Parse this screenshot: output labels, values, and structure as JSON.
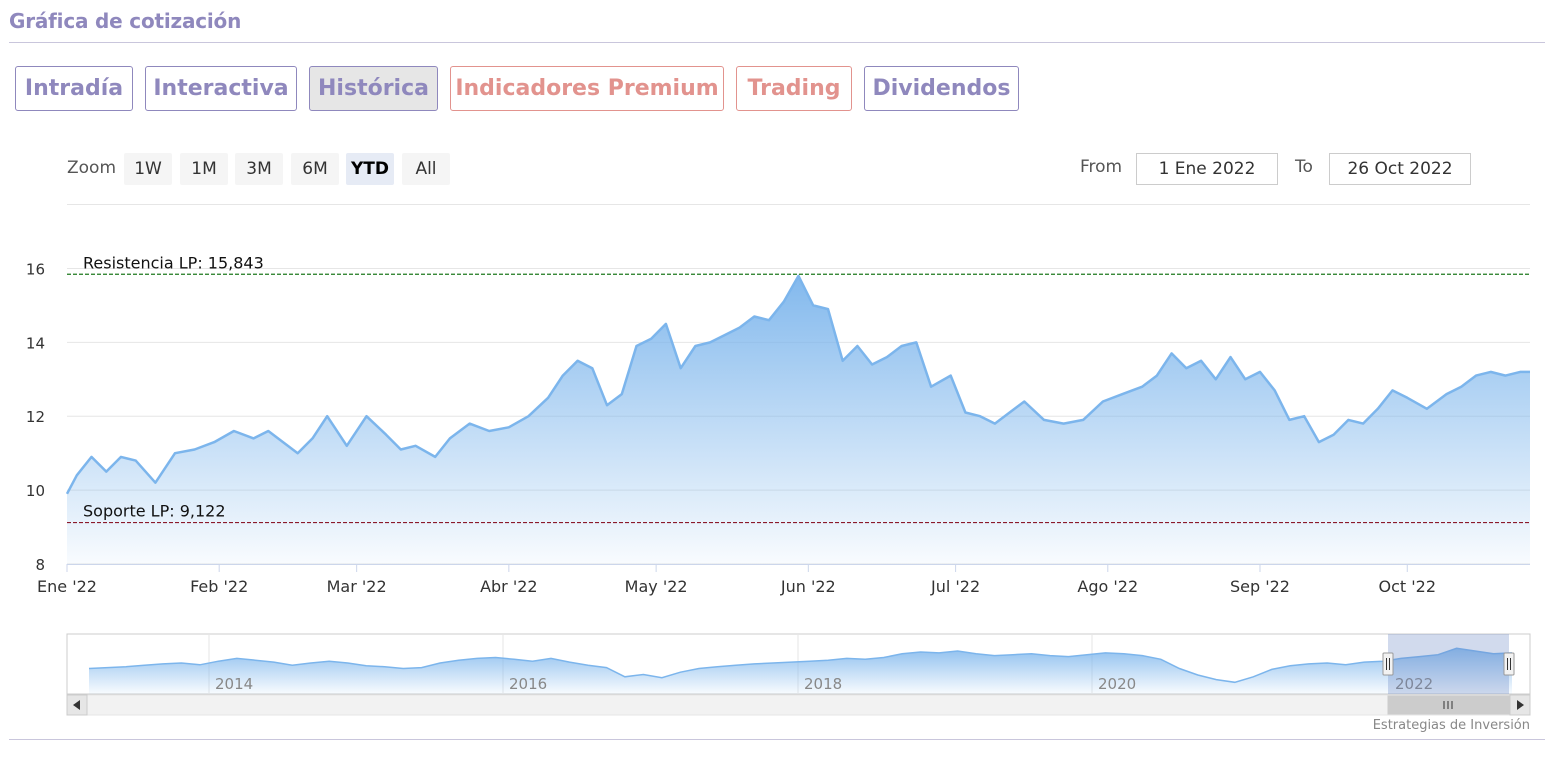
{
  "header": {
    "title": "Gráfica de cotización"
  },
  "tabs": [
    {
      "label": "Intradía"
    },
    {
      "label": "Interactiva"
    },
    {
      "label": "Histórica"
    },
    {
      "label": "Indicadores Premium"
    },
    {
      "label": "Trading"
    },
    {
      "label": "Dividendos"
    }
  ],
  "zoom": {
    "label": "Zoom",
    "buttons": [
      "1W",
      "1M",
      "3M",
      "6M",
      "YTD",
      "All"
    ],
    "selected": "YTD"
  },
  "range": {
    "from_label": "From",
    "from_value": "1 Ene 2022",
    "to_label": "To",
    "to_value": "26 Oct 2022"
  },
  "navigator": {
    "year_labels": [
      "2014",
      "2016",
      "2018",
      "2020",
      "2022"
    ]
  },
  "credits": "Estrategias de Inversión",
  "colors": {
    "accent": "#8f88bd",
    "premium": "#e2938e",
    "series": "#7cb5ec",
    "resistance": "#1f7a1f",
    "support": "#8b1a2b"
  },
  "chart_data": {
    "type": "area",
    "ylim": [
      8,
      16.5
    ],
    "yticks": [
      8,
      10,
      12,
      14,
      16
    ],
    "x_tick_labels": [
      "Ene '22",
      "Feb '22",
      "Mar '22",
      "Abr '22",
      "May '22",
      "Jun '22",
      "Jul '22",
      "Ago '22",
      "Sep '22",
      "Oct '22"
    ],
    "x_range": [
      "2022-01-01",
      "2022-10-26"
    ],
    "annotations": [
      {
        "label": "Resistencia LP: 15,843",
        "value": 15.843
      },
      {
        "label": "Soporte LP: 9,122",
        "value": 9.122
      }
    ],
    "series": [
      {
        "x": [
          "2022-01-01",
          "2022-01-03",
          "2022-01-06",
          "2022-01-09",
          "2022-01-12",
          "2022-01-15",
          "2022-01-19",
          "2022-01-23",
          "2022-01-27",
          "2022-01-31",
          "2022-02-04",
          "2022-02-08",
          "2022-02-11",
          "2022-02-14",
          "2022-02-17",
          "2022-02-20",
          "2022-02-23",
          "2022-02-27",
          "2022-03-03",
          "2022-03-07",
          "2022-03-10",
          "2022-03-13",
          "2022-03-17",
          "2022-03-20",
          "2022-03-24",
          "2022-03-28",
          "2022-04-01",
          "2022-04-05",
          "2022-04-09",
          "2022-04-12",
          "2022-04-15",
          "2022-04-18",
          "2022-04-21",
          "2022-04-24",
          "2022-04-27",
          "2022-04-30",
          "2022-05-03",
          "2022-05-06",
          "2022-05-09",
          "2022-05-12",
          "2022-05-15",
          "2022-05-18",
          "2022-05-21",
          "2022-05-24",
          "2022-05-27",
          "2022-05-30",
          "2022-06-02",
          "2022-06-05",
          "2022-06-08",
          "2022-06-11",
          "2022-06-14",
          "2022-06-17",
          "2022-06-20",
          "2022-06-23",
          "2022-06-26",
          "2022-06-30",
          "2022-07-03",
          "2022-07-06",
          "2022-07-09",
          "2022-07-12",
          "2022-07-15",
          "2022-07-19",
          "2022-07-23",
          "2022-07-27",
          "2022-07-31",
          "2022-08-04",
          "2022-08-08",
          "2022-08-11",
          "2022-08-14",
          "2022-08-17",
          "2022-08-20",
          "2022-08-23",
          "2022-08-26",
          "2022-08-29",
          "2022-09-01",
          "2022-09-04",
          "2022-09-07",
          "2022-09-10",
          "2022-09-13",
          "2022-09-16",
          "2022-09-19",
          "2022-09-22",
          "2022-09-25",
          "2022-09-28",
          "2022-10-01",
          "2022-10-05",
          "2022-10-09",
          "2022-10-12",
          "2022-10-15",
          "2022-10-18",
          "2022-10-21",
          "2022-10-24",
          "2022-10-26"
        ],
        "values": [
          9.9,
          10.4,
          10.9,
          10.5,
          10.9,
          10.8,
          10.2,
          11.0,
          11.1,
          11.3,
          11.6,
          11.4,
          11.6,
          11.3,
          11.0,
          11.4,
          12.0,
          11.2,
          12.0,
          11.5,
          11.1,
          11.2,
          10.9,
          11.4,
          11.8,
          11.6,
          11.7,
          12.0,
          12.5,
          13.1,
          13.5,
          13.3,
          12.3,
          12.6,
          13.9,
          14.1,
          14.5,
          13.3,
          13.9,
          14.0,
          14.2,
          14.4,
          14.7,
          14.6,
          15.1,
          15.8,
          15.0,
          14.9,
          13.5,
          13.9,
          13.4,
          13.6,
          13.9,
          14.0,
          12.8,
          13.1,
          12.1,
          12.0,
          11.8,
          12.1,
          12.4,
          11.9,
          11.8,
          11.9,
          12.4,
          12.6,
          12.8,
          13.1,
          13.7,
          13.3,
          13.5,
          13.0,
          13.6,
          13.0,
          13.2,
          12.7,
          11.9,
          12.0,
          11.3,
          11.5,
          11.9,
          11.8,
          12.2,
          12.7,
          12.5,
          12.2,
          12.6,
          12.8,
          13.1,
          13.2,
          13.1,
          13.2,
          13.2
        ]
      }
    ]
  }
}
